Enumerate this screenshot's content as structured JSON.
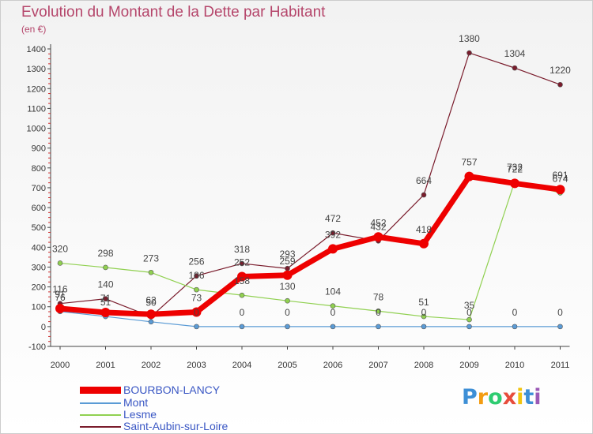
{
  "chart_data": {
    "type": "line",
    "title": "Evolution du Montant de la Dette par Habitant",
    "subtitle": "(en €)",
    "xlabel": "",
    "ylabel": "",
    "x": [
      "2000",
      "2001",
      "2002",
      "2003",
      "2004",
      "2005",
      "2006",
      "2007",
      "2008",
      "2009",
      "2010",
      "2011"
    ],
    "ylim": [
      -100,
      1400
    ],
    "yticks": [
      -100,
      0,
      100,
      200,
      300,
      400,
      500,
      600,
      700,
      800,
      900,
      1000,
      1100,
      1200,
      1300,
      1400
    ],
    "grid": false,
    "legend_position": "bottom-left",
    "series": [
      {
        "name": "BOURBON-LANCY",
        "color": "#ee0000",
        "values": [
          91,
          71,
          62,
          73,
          252,
          259,
          392,
          452,
          418,
          757,
          722,
          691
        ],
        "labels": [
          "91",
          "71",
          "62",
          "73",
          "252",
          "259",
          "392",
          "452",
          "418",
          "757",
          "722",
          "691"
        ]
      },
      {
        "name": "Mont",
        "color": "#5b9bd5",
        "values": [
          76,
          51,
          24,
          0,
          0,
          0,
          0,
          0,
          0,
          0,
          0,
          0
        ],
        "labels": [
          "76",
          "51",
          "",
          "0",
          "0",
          "0",
          "0",
          "0",
          "0",
          "0",
          "0",
          "0"
        ]
      },
      {
        "name": "Lesme",
        "color": "#90d050",
        "values": [
          320,
          298,
          273,
          186,
          158,
          130,
          104,
          78,
          51,
          35,
          732,
          674
        ],
        "labels": [
          "320",
          "298",
          "273",
          "186",
          "158",
          "130",
          "104",
          "78",
          "51",
          "35",
          "732",
          "674"
        ]
      },
      {
        "name": "Saint-Aubin-sur-Loire",
        "color": "#7a1c2c",
        "values": [
          116,
          140,
          50,
          256,
          318,
          293,
          472,
          432,
          664,
          1380,
          1304,
          1220
        ],
        "labels": [
          "116",
          "140",
          "50",
          "256",
          "318",
          "293",
          "472",
          "432",
          "664",
          "1380",
          "1304",
          "1220"
        ]
      }
    ]
  },
  "brand": {
    "letters": [
      "P",
      "r",
      "o",
      "x",
      "i",
      "t",
      "i"
    ],
    "colors": [
      "#3d8fd6",
      "#f39c12",
      "#2ecc71",
      "#e74c3c",
      "#f1c40f",
      "#3d8fd6",
      "#9b59b6"
    ]
  }
}
